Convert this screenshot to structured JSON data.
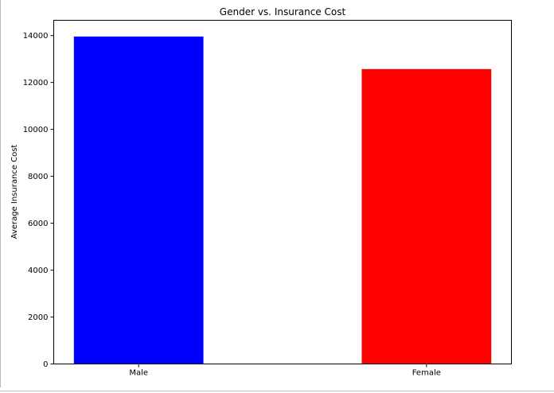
{
  "chart_data": {
    "type": "bar",
    "title": "Gender vs. Insurance Cost",
    "xlabel": "",
    "ylabel": "Average Insurance Cost",
    "categories": [
      "Male",
      "Female"
    ],
    "values": [
      13957,
      12570
    ],
    "colors": [
      "#0000ff",
      "#ff0000"
    ],
    "ylim": [
      0,
      14650
    ],
    "yticks": [
      0,
      2000,
      4000,
      6000,
      8000,
      10000,
      12000,
      14000
    ],
    "grid": false,
    "legend": "none"
  }
}
